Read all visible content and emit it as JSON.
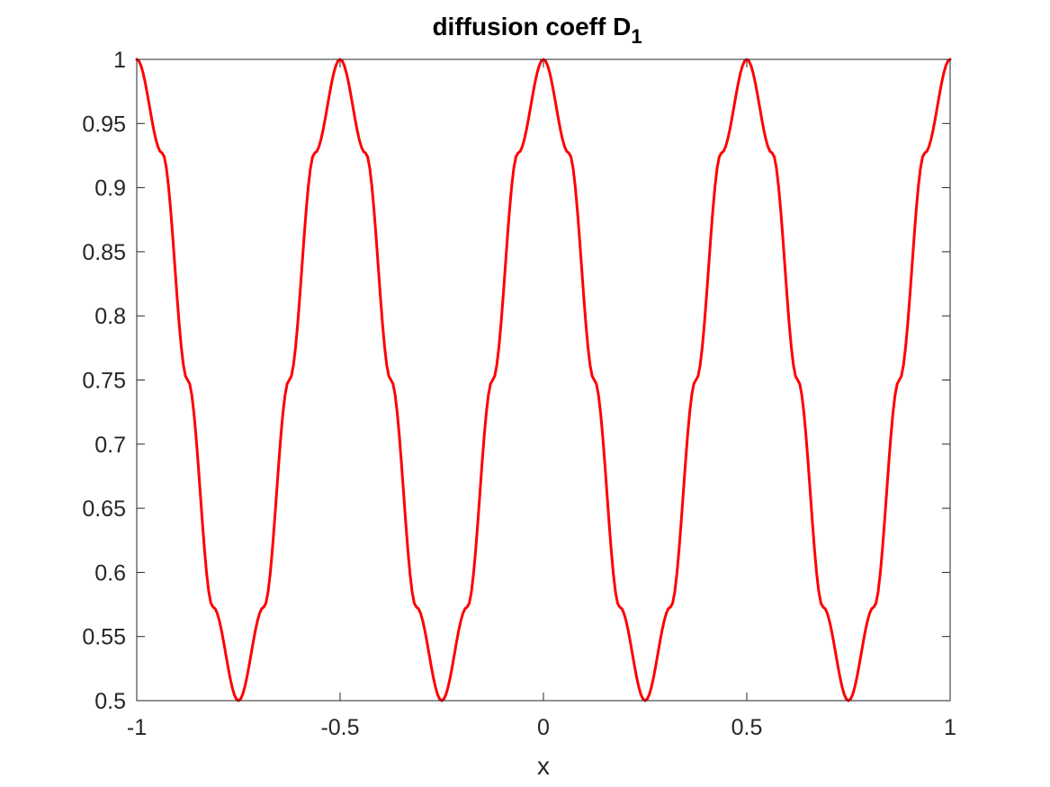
{
  "chart_data": {
    "type": "line",
    "title": "diffusion coeff D",
    "title_subscript": "1",
    "xlabel": "x",
    "ylabel": "",
    "xlim": [
      -1,
      1
    ],
    "ylim": [
      0.5,
      1
    ],
    "xticks": [
      -1,
      -0.5,
      0,
      0.5,
      1
    ],
    "xtick_labels": [
      "-1",
      "-0.5",
      "0",
      "0.5",
      "1"
    ],
    "yticks": [
      0.5,
      0.55,
      0.6,
      0.65,
      0.7,
      0.75,
      0.8,
      0.85,
      0.9,
      0.95,
      1
    ],
    "ytick_labels": [
      "0.5",
      "0.55",
      "0.6",
      "0.65",
      "0.7",
      "0.75",
      "0.8",
      "0.85",
      "0.9",
      "0.95",
      "1"
    ],
    "grid": false,
    "box": true,
    "series": [
      {
        "color": "#ff0000",
        "x": [
          -1,
          -0.9375,
          -0.875,
          -0.8125,
          -0.75,
          -0.6875,
          -0.625,
          -0.5625,
          -0.5,
          -0.4375,
          -0.375,
          -0.3125,
          -0.25,
          -0.1875,
          -0.125,
          -0.0625,
          0,
          0.0625,
          0.125,
          0.1875,
          0.25,
          0.3125,
          0.375,
          0.4375,
          0.5,
          0.5625,
          0.625,
          0.6875,
          0.75,
          0.8125,
          0.875,
          0.9375,
          1
        ],
        "y": [
          1,
          0.927,
          0.75,
          0.573,
          0.5,
          0.573,
          0.75,
          0.927,
          1,
          0.927,
          0.75,
          0.573,
          0.5,
          0.573,
          0.75,
          0.927,
          1,
          0.927,
          0.75,
          0.573,
          0.5,
          0.573,
          0.75,
          0.927,
          1,
          0.927,
          0.75,
          0.573,
          0.5,
          0.573,
          0.75,
          0.927,
          1
        ]
      }
    ]
  }
}
